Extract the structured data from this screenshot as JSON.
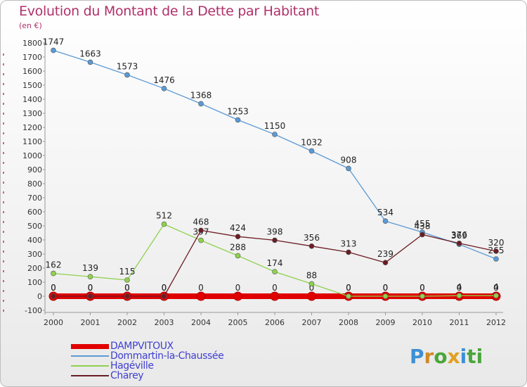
{
  "title": "Evolution du Montant de la Dette par Habitant",
  "subtitle": "(en €)",
  "brand": {
    "text": "Proxiti",
    "letters": [
      "P",
      "r",
      "o",
      "x",
      "i",
      "ti"
    ]
  },
  "chart_data": {
    "type": "line",
    "x": [
      "2000",
      "2001",
      "2002",
      "2003",
      "2004",
      "2005",
      "2006",
      "2007",
      "2008",
      "2009",
      "2010",
      "2011",
      "2012"
    ],
    "ylim": [
      -100,
      1800
    ],
    "ytick_step": 100,
    "grid": false,
    "legend_position": "bottom-left",
    "series": [
      {
        "name": "DAMPVITOUX",
        "color": "#e00000",
        "values": [
          0,
          0,
          0,
          0,
          0,
          0,
          0,
          0,
          0,
          0,
          0,
          0,
          0
        ],
        "labels": [
          "0",
          "0",
          "0",
          "0",
          "0",
          "0",
          "0",
          "0",
          "0",
          "0",
          "0",
          "0",
          "0"
        ]
      },
      {
        "name": "Dommartin-la-Chaussée",
        "color": "#5b9ad5",
        "values": [
          1747,
          1663,
          1573,
          1476,
          1368,
          1253,
          1150,
          1032,
          908,
          534,
          455,
          369,
          265
        ],
        "labels": [
          "1747",
          "1663",
          "1573",
          "1476",
          "1368",
          "1253",
          "1150",
          "1032",
          "908",
          "534",
          "455",
          "369",
          "265"
        ]
      },
      {
        "name": "Hagéville",
        "color": "#8fd14f",
        "values": [
          162,
          139,
          115,
          512,
          397,
          288,
          174,
          88,
          0,
          0,
          0,
          4,
          4
        ],
        "labels": [
          "162",
          "139",
          "115",
          "512",
          "397",
          "288",
          "174",
          "88",
          "0",
          "0",
          "0",
          "4",
          "4"
        ]
      },
      {
        "name": "Charey",
        "color": "#6b1c24",
        "values": [
          0,
          0,
          0,
          0,
          468,
          424,
          398,
          356,
          313,
          239,
          438,
          376,
          320
        ],
        "labels": [
          "0",
          "0",
          "0",
          "0",
          "468",
          "424",
          "398",
          "356",
          "313",
          "239",
          "438",
          "376",
          "320"
        ]
      }
    ]
  }
}
